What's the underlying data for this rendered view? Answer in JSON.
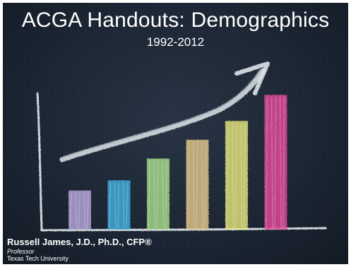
{
  "slide": {
    "title": "ACGA Handouts: Demographics",
    "subtitle": "1992-2012",
    "author": "Russell James, J.D., Ph.D., CFP®",
    "role": "Professor",
    "affiliation": "Texas Tech University"
  },
  "illustration": {
    "description_icons": [
      "chalk-bar-chart",
      "rising-arrow-icon"
    ],
    "bar_colors": [
      "#b7a6dc",
      "#3fb0df",
      "#a6dc8a",
      "#e0c487",
      "#e4e47a",
      "#e64a9a"
    ],
    "bar_levels": [
      0.27,
      0.34,
      0.49,
      0.62,
      0.75,
      0.93
    ]
  },
  "colors": {
    "board": "#1f2a38",
    "chalk": "#e6eaee"
  }
}
